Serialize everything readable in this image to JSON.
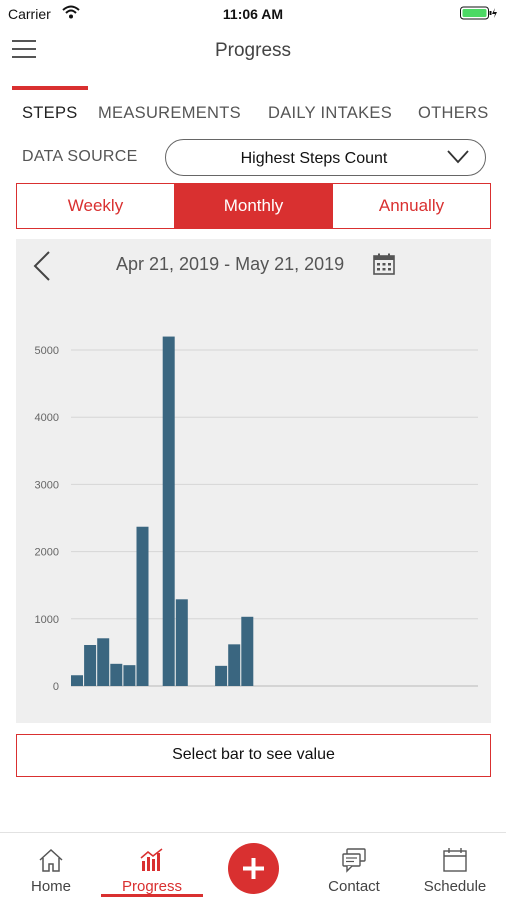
{
  "status_bar": {
    "carrier": "Carrier",
    "time": "11:06 AM"
  },
  "nav": {
    "title": "Progress",
    "menu_icon": "hamburger-menu-icon"
  },
  "top_tabs": [
    {
      "label": "STEPS",
      "active": true
    },
    {
      "label": "MEASUREMENTS",
      "active": false
    },
    {
      "label": "DAILY INTAKES",
      "active": false
    },
    {
      "label": "OTHERS",
      "active": false
    }
  ],
  "data_source": {
    "label": "DATA SOURCE",
    "value": "Highest Steps Count"
  },
  "period_tabs": [
    {
      "label": "Weekly",
      "active": false
    },
    {
      "label": "Monthly",
      "active": true
    },
    {
      "label": "Annually",
      "active": false
    }
  ],
  "date_range": "Apr 21, 2019 - May 21, 2019",
  "chart_data": {
    "type": "bar",
    "ylim": [
      0,
      5000
    ],
    "yticks": [
      "0",
      "1000",
      "2000",
      "3000",
      "4000",
      "5000"
    ],
    "grid": true,
    "bar_color": "#3a6680",
    "values": [
      160,
      610,
      710,
      330,
      310,
      2370,
      0,
      5200,
      1290,
      0,
      0,
      300,
      620,
      1030,
      0,
      0,
      0,
      0,
      0,
      0,
      0,
      0,
      0,
      0,
      0,
      0,
      0,
      0,
      0,
      0,
      0
    ]
  },
  "value_hint": "Select bar to see value",
  "tab_bar": {
    "items": [
      {
        "label": "Home",
        "icon": "home-icon",
        "active": false
      },
      {
        "label": "Progress",
        "icon": "bar-chart-icon",
        "active": true
      },
      {
        "label": "Contact",
        "icon": "chat-icon",
        "active": false
      },
      {
        "label": "Schedule",
        "icon": "calendar-icon",
        "active": false
      }
    ],
    "fab_icon": "plus-icon"
  },
  "colors": {
    "accent": "#d93030",
    "bar": "#3a6680",
    "chart_bg": "#efefef"
  }
}
